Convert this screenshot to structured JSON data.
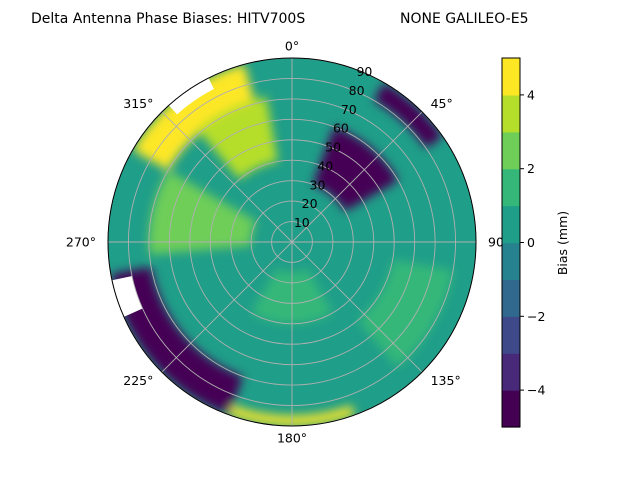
{
  "chart_data": {
    "type": "polar-contour",
    "title": "Delta Antenna Phase Biases: HITV700S",
    "subtitle": "NONE GALILEO-E5",
    "azimuth_labels": [
      "0°",
      "45°",
      "90°",
      "135°",
      "180°",
      "225°",
      "270°",
      "315°"
    ],
    "zenith_ticks": [
      "10",
      "20",
      "30",
      "40",
      "50",
      "60",
      "70",
      "80",
      "90"
    ],
    "zenith_range": [
      0,
      90
    ],
    "colorbar": {
      "label": "Bias (mm)",
      "range": [
        -5,
        5
      ],
      "levels": [
        -5,
        -4,
        -3,
        -2,
        -1,
        0,
        1,
        2,
        3,
        4,
        5
      ],
      "tick_labels": [
        "−4",
        "−2",
        "0",
        "2",
        "4"
      ],
      "colors": [
        "#440154",
        "#482878",
        "#3e4989",
        "#31688e",
        "#26828e",
        "#1f9e89",
        "#35b779",
        "#6ece58",
        "#b5de2b",
        "#fde725"
      ]
    },
    "contour_regions": [
      {
        "azimuth_deg": [
          300,
          345
        ],
        "zenith_deg": [
          70,
          90
        ],
        "bias_mm": 4.5
      },
      {
        "azimuth_deg": [
          320,
          350
        ],
        "zenith_deg": [
          40,
          72
        ],
        "bias_mm": 3.5
      },
      {
        "azimuth_deg": [
          20,
          60
        ],
        "zenith_deg": [
          30,
          60
        ],
        "bias_mm": -4.5
      },
      {
        "azimuth_deg": [
          30,
          55
        ],
        "zenith_deg": [
          80,
          90
        ],
        "bias_mm": -4.5
      },
      {
        "azimuth_deg": [
          200,
          260
        ],
        "zenith_deg": [
          70,
          90
        ],
        "bias_mm": -4.5
      },
      {
        "azimuth_deg": [
          160,
          200
        ],
        "zenith_deg": [
          85,
          90
        ],
        "bias_mm": 4.5
      },
      {
        "azimuth_deg": [
          100,
          140
        ],
        "zenith_deg": [
          50,
          80
        ],
        "bias_mm": 1.5
      },
      {
        "azimuth_deg": [
          150,
          210
        ],
        "zenith_deg": [
          15,
          40
        ],
        "bias_mm": 1.5
      },
      {
        "azimuth_deg": [
          265,
          300
        ],
        "zenith_deg": [
          20,
          70
        ],
        "bias_mm": 2.5
      }
    ],
    "missing_regions": [
      "near 325° at zenith 90",
      "near 250° at zenith 90"
    ]
  }
}
